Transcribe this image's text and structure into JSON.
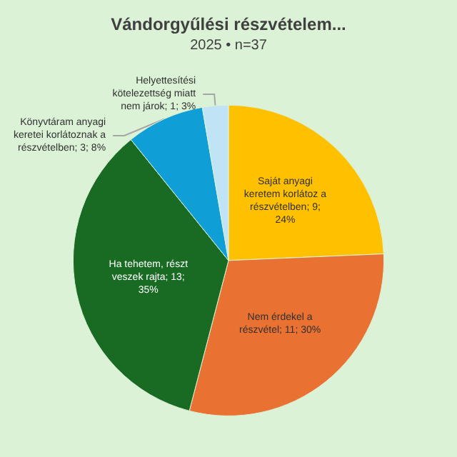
{
  "chart_data": {
    "type": "pie",
    "title": "Vándorgyűlési részvételem...",
    "subtitle": "2025 • n=37",
    "categories": [
      "Saját anyagi keretem korlátoz a részvételben",
      "Nem érdekel a részvétel",
      "Ha tehetem, részt veszek rajta",
      "Könyvtáram anyagi keretei korlátoznak a részvételben",
      "Helyettesítési kötelezettség miatt nem járok"
    ],
    "values": [
      9,
      11,
      13,
      3,
      1
    ],
    "value_labels": [
      "9; 24%",
      "11; 30%",
      "13; 35%",
      "3; 8%",
      "1; 3%"
    ],
    "colors": [
      "#ffc000",
      "#e97132",
      "#196b24",
      "#0f9ed5",
      "#c0e4f5"
    ],
    "legend": false
  }
}
